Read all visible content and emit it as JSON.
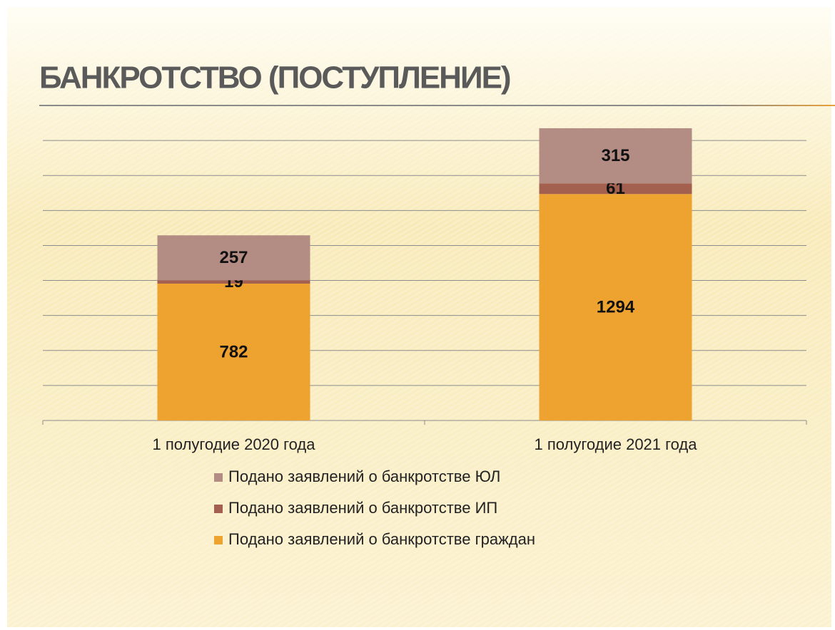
{
  "chart_data": {
    "type": "stacked_bar",
    "title": "БАНКРОТСТВО (ПОСТУПЛЕНИЕ)",
    "categories": [
      "1 полугодие 2020 года",
      "1 полугодие 2021 года"
    ],
    "series": [
      {
        "name": "Подано заявлений о банкротстве граждан",
        "color": "#eea230",
        "values": [
          782,
          1294
        ]
      },
      {
        "name": "Подано заявлений о банкротстве ИП",
        "color": "#a3604f",
        "values": [
          19,
          61
        ]
      },
      {
        "name": "Подано заявлений о банкротстве ЮЛ",
        "color": "#b38c84",
        "values": [
          257,
          315
        ]
      }
    ],
    "ylim": [
      0,
      1800
    ],
    "yticks": [
      0,
      200,
      400,
      600,
      800,
      1000,
      1200,
      1400,
      1600
    ],
    "grid": true
  }
}
